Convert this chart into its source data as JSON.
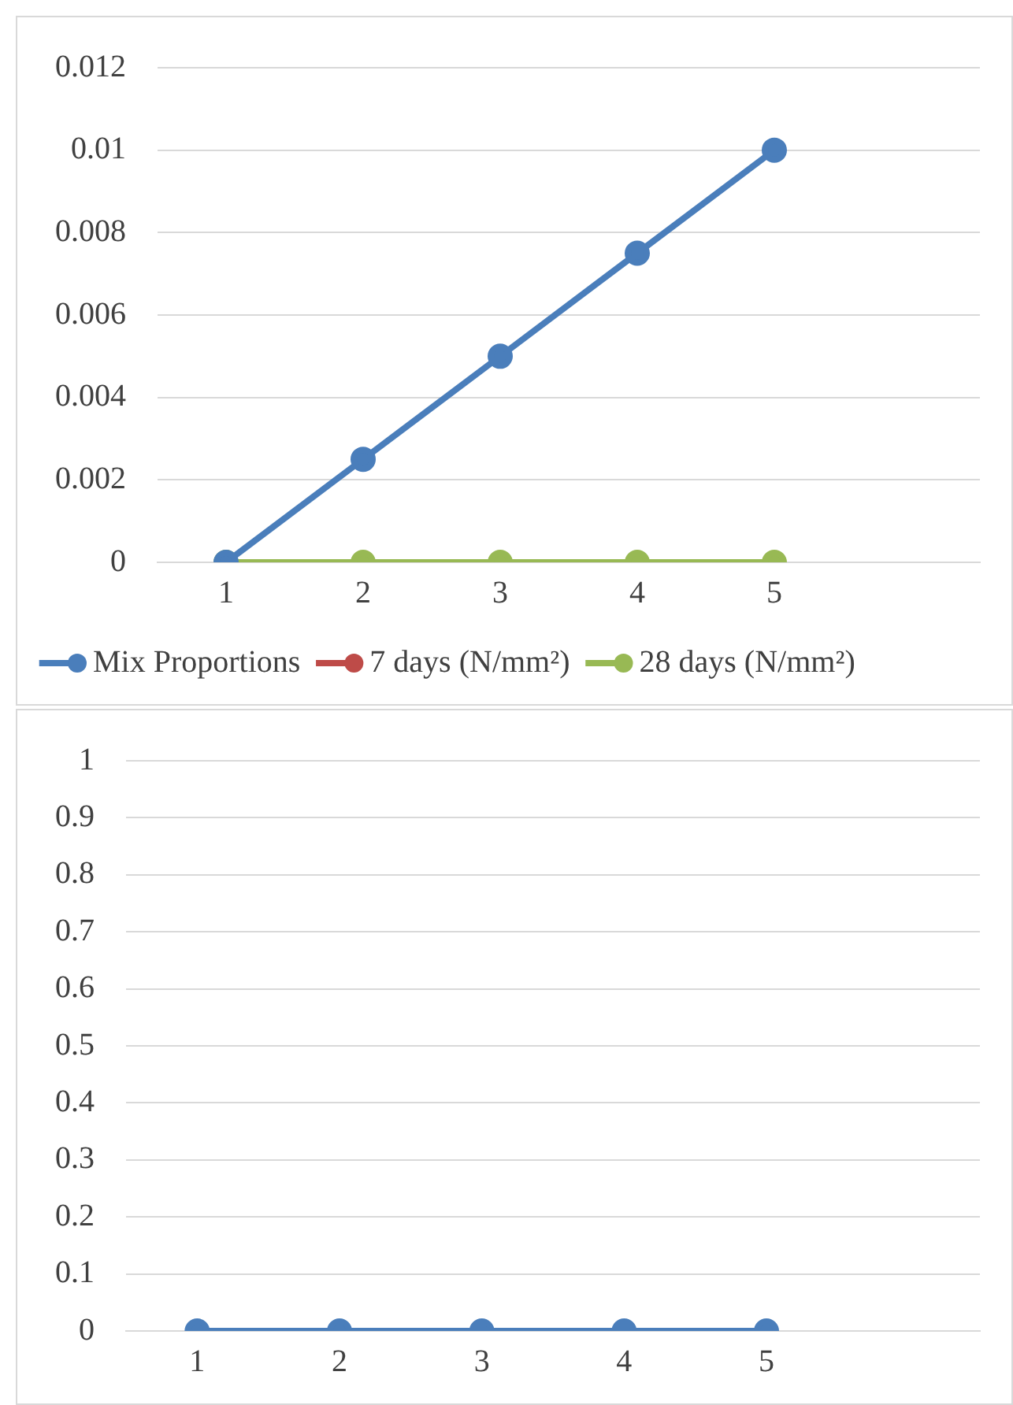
{
  "chart_data": [
    {
      "type": "line",
      "categories": [
        "1",
        "2",
        "3",
        "4",
        "5",
        null
      ],
      "series": [
        {
          "name": "Mix Proportions",
          "color": "#4a7ebb",
          "values": [
            0,
            0.0025,
            0.005,
            0.0075,
            0.01,
            null
          ]
        },
        {
          "name": "7 days (N/mm²)",
          "color": "#be4b48",
          "values": [
            null,
            null,
            null,
            null,
            null,
            null
          ]
        },
        {
          "name": "28 days (N/mm²)",
          "color": "#98b954",
          "values": [
            0,
            0,
            0,
            0,
            0,
            null
          ]
        }
      ],
      "ylim": [
        0,
        0.012
      ],
      "yticks": [
        0,
        0.002,
        0.004,
        0.006,
        0.008,
        0.01,
        0.012
      ],
      "grid": "y",
      "legend": "bottom",
      "marker": "circle",
      "line_style": "solid"
    },
    {
      "type": "line",
      "categories": [
        "1",
        "2",
        "3",
        "4",
        "5",
        null
      ],
      "series": [
        {
          "color": "#4a7ebb",
          "values": [
            0,
            0,
            0,
            0,
            0,
            null
          ]
        }
      ],
      "ylim": [
        0,
        1
      ],
      "yticks": [
        0,
        0.1,
        0.2,
        0.3,
        0.4,
        0.5,
        0.6,
        0.7,
        0.8,
        0.9,
        1
      ],
      "grid": "y",
      "legend": false,
      "marker": "circle",
      "line_style": "solid"
    }
  ]
}
